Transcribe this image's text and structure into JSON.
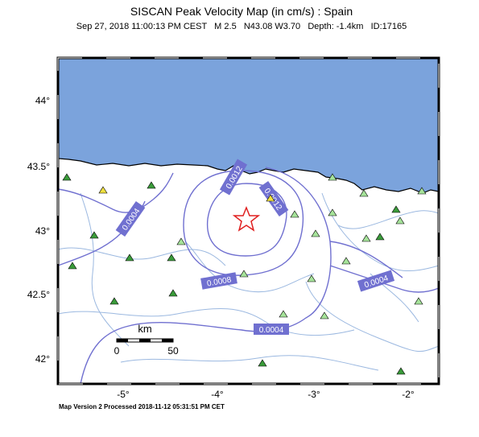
{
  "header": {
    "title": "SISCAN Peak Velocity Map (in cm/s) : Spain",
    "subtitle": "Sep 27, 2018 11:00:13 PM CEST   M 2.5   N43.08 W3.70   Depth: -1.4km   ID:17165"
  },
  "map": {
    "lat_labels": [
      "44°",
      "43.5°",
      "43°",
      "42.5°",
      "42°"
    ],
    "lon_labels": [
      "-5°",
      "-4°",
      "-3°",
      "-2°"
    ],
    "contour_labels": [
      "0.0004",
      "0.0008",
      "0.0012",
      "0.0012",
      "0.0004",
      "0.0004"
    ],
    "scale_bar": {
      "unit": "km",
      "start": "0",
      "end": "50"
    }
  },
  "footer": "Map Version 2 Processed 2018-11-12 05:31:51 PM CET"
}
